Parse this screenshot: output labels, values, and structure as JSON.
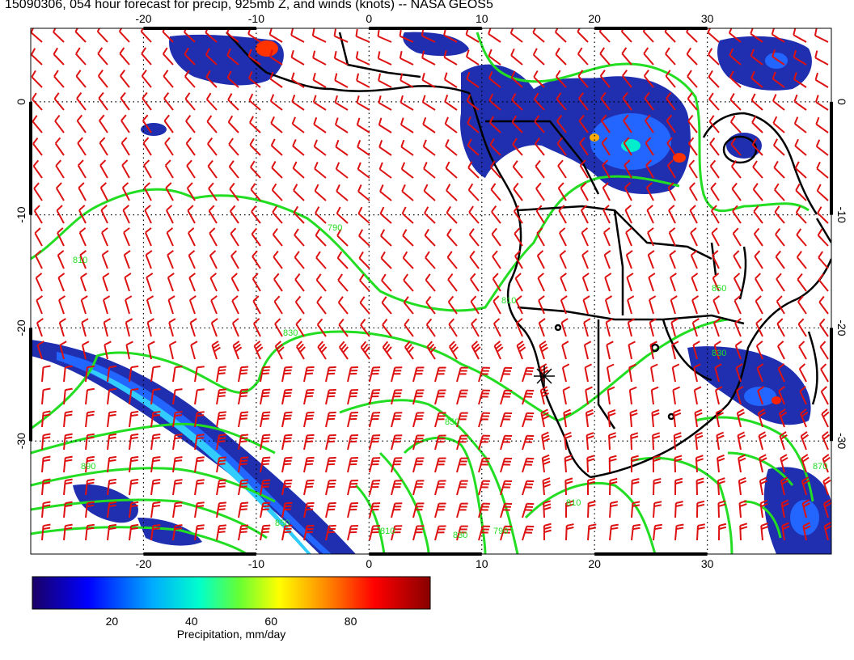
{
  "title": "15090306, 054 hour forecast for precip, 925mb Z, and winds (knots) -- NASA GEOS5",
  "map": {
    "lon_range": [
      -30,
      41
    ],
    "lat_range": [
      -40,
      6.5
    ],
    "lon_ticks": [
      "-20",
      "-10",
      "0",
      "10",
      "20",
      "30"
    ],
    "lat_ticks": [
      "0",
      "-10",
      "-20",
      "-30"
    ],
    "gridlines": true,
    "contour_color": "#22dd22",
    "barb_color": "#dd1111",
    "land_outline_color": "#000000",
    "contour_labels": [
      "810",
      "790",
      "830",
      "850",
      "810",
      "850",
      "830",
      "810",
      "790",
      "870",
      "890",
      "850",
      "810",
      "830"
    ]
  },
  "colorbar": {
    "label": "Precipitation, mm/day",
    "ticks": [
      "20",
      "40",
      "60",
      "80"
    ],
    "range": [
      0,
      100
    ],
    "colors": [
      "#1a0066",
      "#0000ff",
      "#00aaff",
      "#00ffcc",
      "#66ff33",
      "#ffff00",
      "#ff8800",
      "#ff0000",
      "#880000"
    ]
  }
}
